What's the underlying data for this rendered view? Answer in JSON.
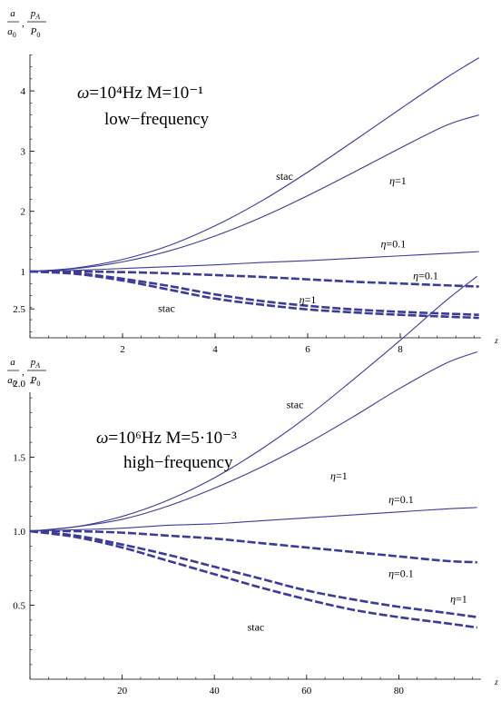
{
  "chart_data": [
    {
      "type": "line",
      "ylabel_num_1": "a",
      "ylabel_den_1": "a",
      "ylabel_den_1_sub": "0",
      "ylabel_num_2": "p",
      "ylabel_num_2_sub": "A",
      "ylabel_den_2": "P",
      "ylabel_den_2_sub": "0",
      "xlabel": "z",
      "title_line1": "ω=10⁴Hz  M=10⁻¹",
      "subtitle": "low−frequency",
      "xlim": [
        0,
        9.7
      ],
      "ylim": [
        0.15,
        4.6
      ],
      "xticks": [
        "2",
        "4",
        "6",
        "8"
      ],
      "xtick_values": [
        2,
        4,
        6,
        8
      ],
      "yticks": [
        "1",
        "2",
        "3",
        "4"
      ],
      "ytick_values": [
        1,
        2,
        3,
        4
      ],
      "annotations": [
        {
          "text": "stac",
          "x": 5.5,
          "y": 2.52
        },
        {
          "text": "η=1",
          "x": 7.95,
          "y": 2.45
        },
        {
          "text": "η=0.1",
          "x": 7.85,
          "y": 1.4
        },
        {
          "text": "η=0.1",
          "x": 8.55,
          "y": 0.87
        },
        {
          "text": "η=1",
          "x": 6.0,
          "y": 0.47
        },
        {
          "text": "stac",
          "x": 2.95,
          "y": 0.33
        }
      ],
      "series": [
        {
          "style": "solid",
          "color": "#3b3b9a",
          "x": [
            0,
            1,
            2,
            3,
            4,
            5,
            6,
            7,
            8,
            9,
            9.7
          ],
          "y": [
            1.0,
            1.06,
            1.2,
            1.43,
            1.76,
            2.17,
            2.65,
            3.17,
            3.7,
            4.22,
            4.55
          ]
        },
        {
          "style": "solid",
          "color": "#3b3b9a",
          "x": [
            0,
            1,
            2,
            3,
            4,
            5,
            6,
            7,
            8,
            9,
            9.7
          ],
          "y": [
            1.0,
            1.05,
            1.16,
            1.34,
            1.59,
            1.9,
            2.26,
            2.65,
            3.05,
            3.43,
            3.6
          ]
        },
        {
          "style": "solid",
          "color": "#3b3b9a",
          "x": [
            0,
            1,
            2,
            3,
            4,
            5,
            6,
            7,
            8,
            9,
            9.7
          ],
          "y": [
            1.0,
            1.02,
            1.05,
            1.08,
            1.11,
            1.15,
            1.18,
            1.22,
            1.26,
            1.3,
            1.33
          ]
        },
        {
          "style": "dashed",
          "color": "#3b3b9a",
          "x": [
            0,
            1,
            2,
            3,
            4,
            5,
            6,
            7,
            8,
            9,
            9.7
          ],
          "y": [
            1.0,
            1.0,
            0.99,
            0.97,
            0.94,
            0.91,
            0.87,
            0.83,
            0.8,
            0.77,
            0.75
          ]
        },
        {
          "style": "dashed",
          "color": "#3b3b9a",
          "x": [
            0,
            1,
            2,
            3,
            4,
            5,
            6,
            7,
            8,
            9,
            9.7
          ],
          "y": [
            1.0,
            0.97,
            0.88,
            0.76,
            0.62,
            0.51,
            0.43,
            0.37,
            0.33,
            0.3,
            0.28
          ]
        },
        {
          "style": "dashed",
          "color": "#3b3b9a",
          "x": [
            0,
            1,
            2,
            3,
            4,
            5,
            6,
            7,
            8,
            9,
            9.7
          ],
          "y": [
            1.0,
            0.96,
            0.85,
            0.7,
            0.55,
            0.45,
            0.37,
            0.32,
            0.28,
            0.25,
            0.23
          ]
        }
      ]
    },
    {
      "type": "line",
      "ylabel_num_1": "a",
      "ylabel_den_1": "a",
      "ylabel_den_1_sub": "0",
      "ylabel_num_2": "p",
      "ylabel_num_2_sub": "A",
      "ylabel_den_2": "P",
      "ylabel_den_2_sub": "0",
      "xlabel": "z",
      "title_line1": "ω=10⁶Hz   M=5·10⁻³",
      "subtitle": "high−frequency",
      "xlim": [
        0,
        97
      ],
      "ylim": [
        0.1,
        2.8
      ],
      "xticks": [
        "20",
        "40",
        "60",
        "80"
      ],
      "xtick_values": [
        20,
        40,
        60,
        80
      ],
      "yticks": [
        "0.5",
        "1.0",
        "1.5",
        "2.0",
        "2.5"
      ],
      "ytick_values": [
        0.5,
        1.0,
        1.5,
        2.0,
        2.5
      ],
      "annotations": [
        {
          "text": "stac",
          "x": 57.5,
          "y": 1.83
        },
        {
          "text": "η=1",
          "x": 67,
          "y": 1.35
        },
        {
          "text": "η=0.1",
          "x": 80.5,
          "y": 1.19
        },
        {
          "text": "η=0.1",
          "x": 80.5,
          "y": 0.69
        },
        {
          "text": "η=1",
          "x": 93,
          "y": 0.52
        },
        {
          "text": "stac",
          "x": 49,
          "y": 0.33
        }
      ],
      "series": [
        {
          "style": "solid",
          "color": "#3b3b9a",
          "x": [
            0,
            10,
            20,
            30,
            40,
            50,
            60,
            70,
            80,
            90,
            97
          ],
          "y": [
            1.0,
            1.03,
            1.1,
            1.21,
            1.36,
            1.55,
            1.77,
            2.02,
            2.28,
            2.55,
            2.72
          ]
        },
        {
          "style": "solid",
          "color": "#3b3b9a",
          "x": [
            0,
            10,
            20,
            30,
            40,
            50,
            60,
            70,
            80,
            90,
            97
          ],
          "y": [
            1.0,
            1.03,
            1.08,
            1.17,
            1.29,
            1.43,
            1.59,
            1.77,
            1.96,
            2.13,
            2.21
          ]
        },
        {
          "style": "solid",
          "color": "#3b3b9a",
          "x": [
            0,
            10,
            20,
            30,
            40,
            50,
            60,
            70,
            80,
            90,
            97
          ],
          "y": [
            1.0,
            1.01,
            1.02,
            1.04,
            1.05,
            1.07,
            1.09,
            1.11,
            1.13,
            1.15,
            1.16
          ]
        },
        {
          "style": "dashed",
          "color": "#3b3b9a",
          "x": [
            0,
            10,
            20,
            30,
            40,
            50,
            60,
            70,
            80,
            90,
            97
          ],
          "y": [
            1.0,
            1.0,
            0.99,
            0.97,
            0.95,
            0.92,
            0.89,
            0.86,
            0.83,
            0.8,
            0.79
          ]
        },
        {
          "style": "dashed",
          "color": "#3b3b9a",
          "x": [
            0,
            10,
            20,
            30,
            40,
            50,
            60,
            70,
            80,
            90,
            97
          ],
          "y": [
            1.0,
            0.97,
            0.91,
            0.84,
            0.76,
            0.68,
            0.6,
            0.54,
            0.49,
            0.45,
            0.42
          ]
        },
        {
          "style": "dashed",
          "color": "#3b3b9a",
          "x": [
            0,
            10,
            20,
            30,
            40,
            50,
            60,
            70,
            80,
            90,
            97
          ],
          "y": [
            1.0,
            0.96,
            0.89,
            0.8,
            0.71,
            0.62,
            0.54,
            0.47,
            0.42,
            0.38,
            0.35
          ]
        }
      ]
    }
  ]
}
